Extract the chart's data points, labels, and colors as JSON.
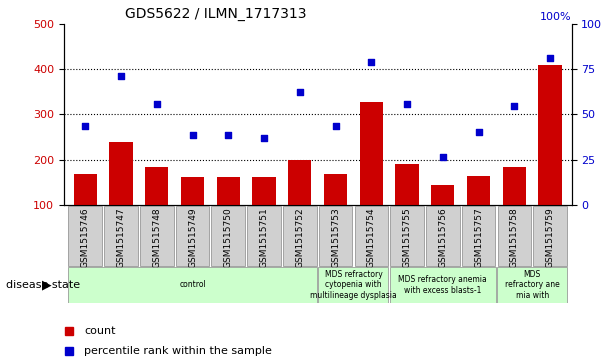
{
  "title": "GDS5622 / ILMN_1717313",
  "samples": [
    "GSM1515746",
    "GSM1515747",
    "GSM1515748",
    "GSM1515749",
    "GSM1515750",
    "GSM1515751",
    "GSM1515752",
    "GSM1515753",
    "GSM1515754",
    "GSM1515755",
    "GSM1515756",
    "GSM1515757",
    "GSM1515758",
    "GSM1515759"
  ],
  "counts": [
    168,
    240,
    185,
    162,
    162,
    162,
    200,
    168,
    328,
    190,
    145,
    165,
    185,
    408
  ],
  "percentiles_left_scale": [
    275,
    385,
    322,
    255,
    255,
    248,
    350,
    275,
    415,
    322,
    205,
    262,
    318,
    425
  ],
  "ylim_left": [
    100,
    500
  ],
  "yticks_left": [
    100,
    200,
    300,
    400,
    500
  ],
  "yticks_right": [
    0,
    25,
    50,
    75,
    100
  ],
  "right_tick_positions": [
    100,
    200,
    300,
    400,
    500
  ],
  "bar_color": "#cc0000",
  "scatter_color": "#0000cc",
  "bg_color": "#ffffff",
  "sample_box_color": "#d0d0d0",
  "disease_groups": [
    {
      "label": "control",
      "start": 0,
      "end": 7,
      "color": "#ccffcc"
    },
    {
      "label": "MDS refractory\ncytopenia with\nmultilineage dysplasia",
      "start": 7,
      "end": 9,
      "color": "#ccffcc"
    },
    {
      "label": "MDS refractory anemia\nwith excess blasts-1",
      "start": 9,
      "end": 12,
      "color": "#ccffcc"
    },
    {
      "label": "MDS\nrefractory ane\nmia with",
      "start": 12,
      "end": 14,
      "color": "#ccffcc"
    }
  ],
  "legend_count_label": "count",
  "legend_pct_label": "percentile rank within the sample",
  "disease_state_label": "disease state"
}
